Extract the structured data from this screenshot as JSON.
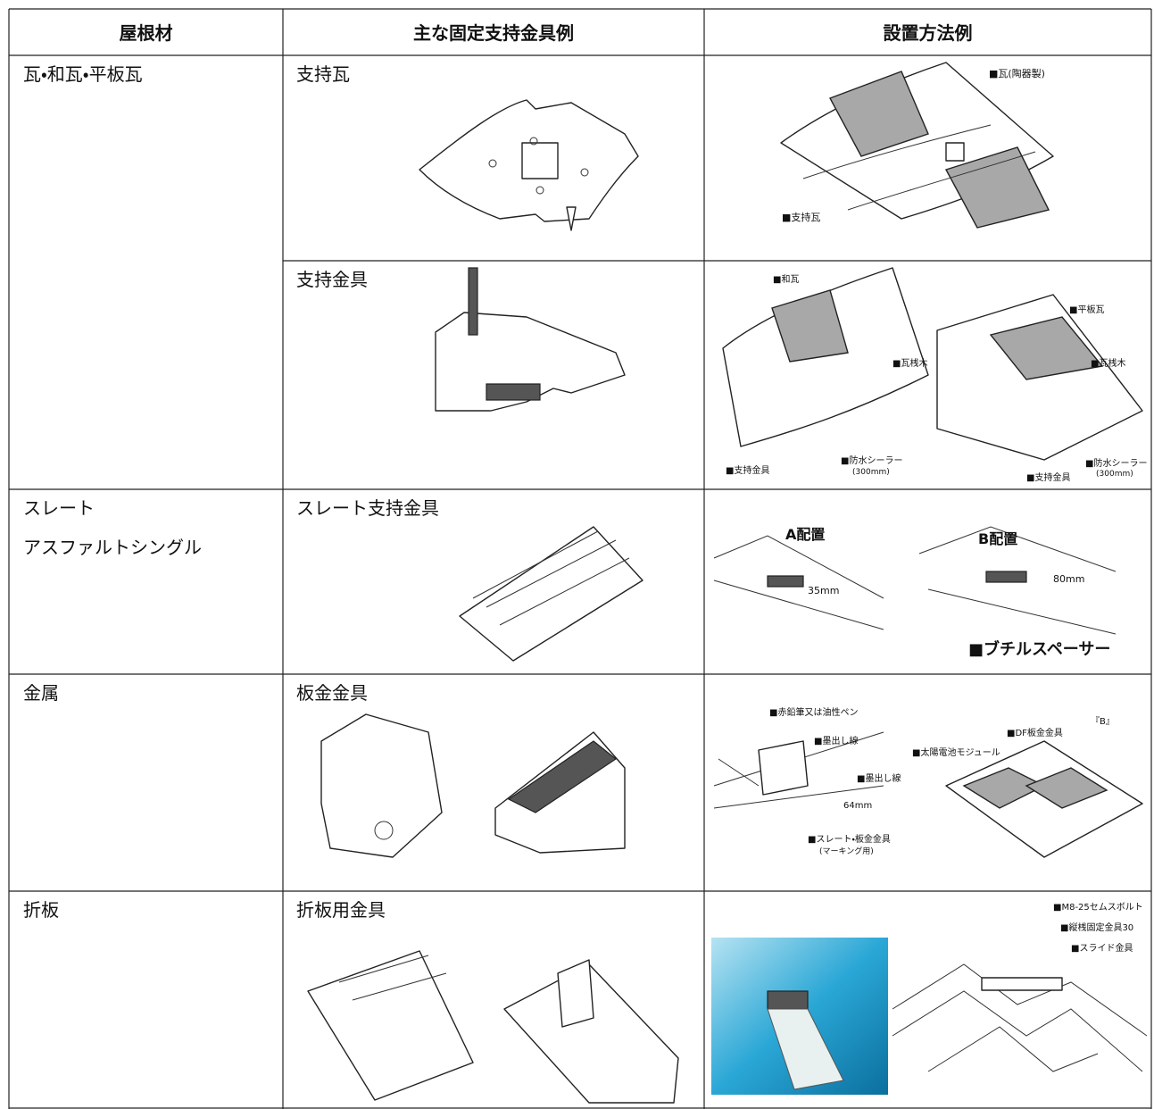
{
  "table": {
    "header": [
      "屋根材",
      "主な固定支持金具例",
      "設置方法例"
    ],
    "rows": [
      {
        "material": [
          "瓦・和瓦・平板瓦"
        ],
        "fitting": "支持瓦",
        "labels": [
          "■瓦(陶器製)",
          "■支持瓦"
        ]
      },
      {
        "fitting": "支持金具",
        "labels": [
          "■和瓦",
          "■瓦桟木",
          "■支持金具",
          "■防水シーラー",
          "(300mm)",
          "■平板瓦",
          "■瓦桟木",
          "■支持金具",
          "■防水シーラー",
          "(300mm)"
        ]
      },
      {
        "material": [
          "スレート",
          "アスファルトシングル"
        ],
        "fitting": "スレート支持金具",
        "labels": [
          "A配置",
          "35mm",
          "B配置",
          "80mm",
          "■ブチルスペーサー"
        ]
      },
      {
        "material": [
          "金属"
        ],
        "fitting": "板金金具",
        "labels": [
          "■赤鉛筆又は油性ペン",
          "■墨出し線",
          "■墨出し線",
          "64mm",
          "■スレート・板金金具",
          "(マーキング用)",
          "『B』",
          "■DF板金金具",
          "■太陽電池モジュール"
        ]
      },
      {
        "material": [
          "折板"
        ],
        "fitting": "折板用金具",
        "labels": [
          "■M8-25セムスボルト",
          "■縦桟固定金具30",
          "■スライド金具"
        ]
      }
    ]
  }
}
